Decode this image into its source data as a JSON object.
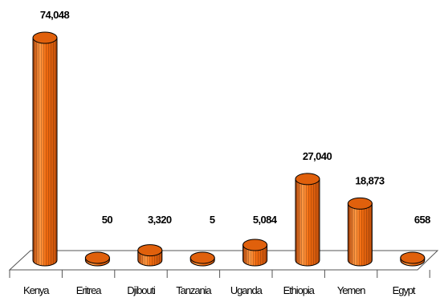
{
  "chart_data": {
    "type": "bar",
    "style": "3d-cylinder",
    "categories": [
      "Kenya",
      "Eritrea",
      "Djibouti",
      "Tanzania",
      "Uganda",
      "Ethiopia",
      "Yemen",
      "Egypt"
    ],
    "values": [
      74048,
      50,
      3320,
      5,
      5084,
      27040,
      18873,
      658
    ],
    "data_labels": [
      "74,048",
      "50",
      "3,320",
      "5",
      "5,084",
      "27,040",
      "18,873",
      "658"
    ],
    "title": "",
    "xlabel": "",
    "ylabel": "",
    "ylim": [
      0,
      74048
    ],
    "grid": false,
    "legend": "none",
    "colors": {
      "bar_body": "#f26b0f",
      "bar_dark": "#b8480a",
      "bar_light": "#ff9a45",
      "bar_top": "#e0600c",
      "outline": "#000000",
      "floor_line": "#555555"
    }
  }
}
